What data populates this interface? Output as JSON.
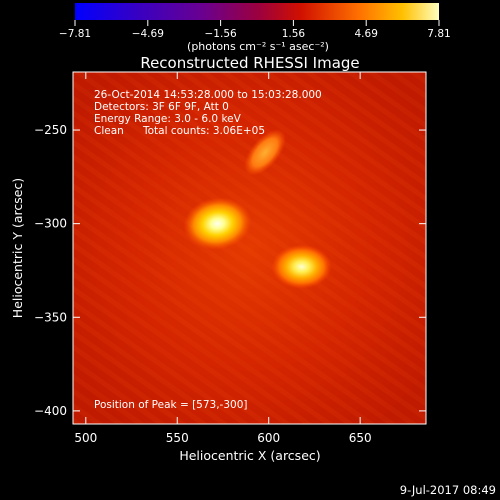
{
  "chart_data": {
    "type": "heatmap",
    "title": "Reconstructed RHESSI Image",
    "xlabel": "Heliocentric X (arcsec)",
    "ylabel": "Heliocentric Y (arcsec)",
    "xlim": [
      493,
      686
    ],
    "ylim": [
      -407,
      -219
    ],
    "x_ticks": [
      500,
      550,
      600,
      650
    ],
    "y_ticks": [
      -250,
      -300,
      -350,
      -400
    ],
    "colorbar": {
      "ticks": [
        "−7.81",
        "−4.69",
        "−1.56",
        "1.56",
        "4.69",
        "7.81"
      ],
      "range": [
        -7.81,
        7.81
      ],
      "units": "(photons cm⁻² s⁻¹ asec⁻²)"
    },
    "sources": [
      {
        "x": 572,
        "y": -300,
        "intensity": 7.81
      },
      {
        "x": 618,
        "y": -323,
        "intensity": 6.6
      },
      {
        "x": 598,
        "y": -262,
        "intensity": 3.4
      }
    ],
    "info": {
      "time_range": "26-Oct-2014 14:53:28.000 to 15:03:28.000",
      "detectors": "Detectors: 3F 6F 9F, Att 0",
      "energy": "Energy Range: 3.0 - 6.0 keV",
      "method": "Clean",
      "counts": "Total counts: 3.06E+05",
      "peak": "Position of Peak = [573,-300]"
    },
    "footer_date": "9-Jul-2017 08:49"
  }
}
